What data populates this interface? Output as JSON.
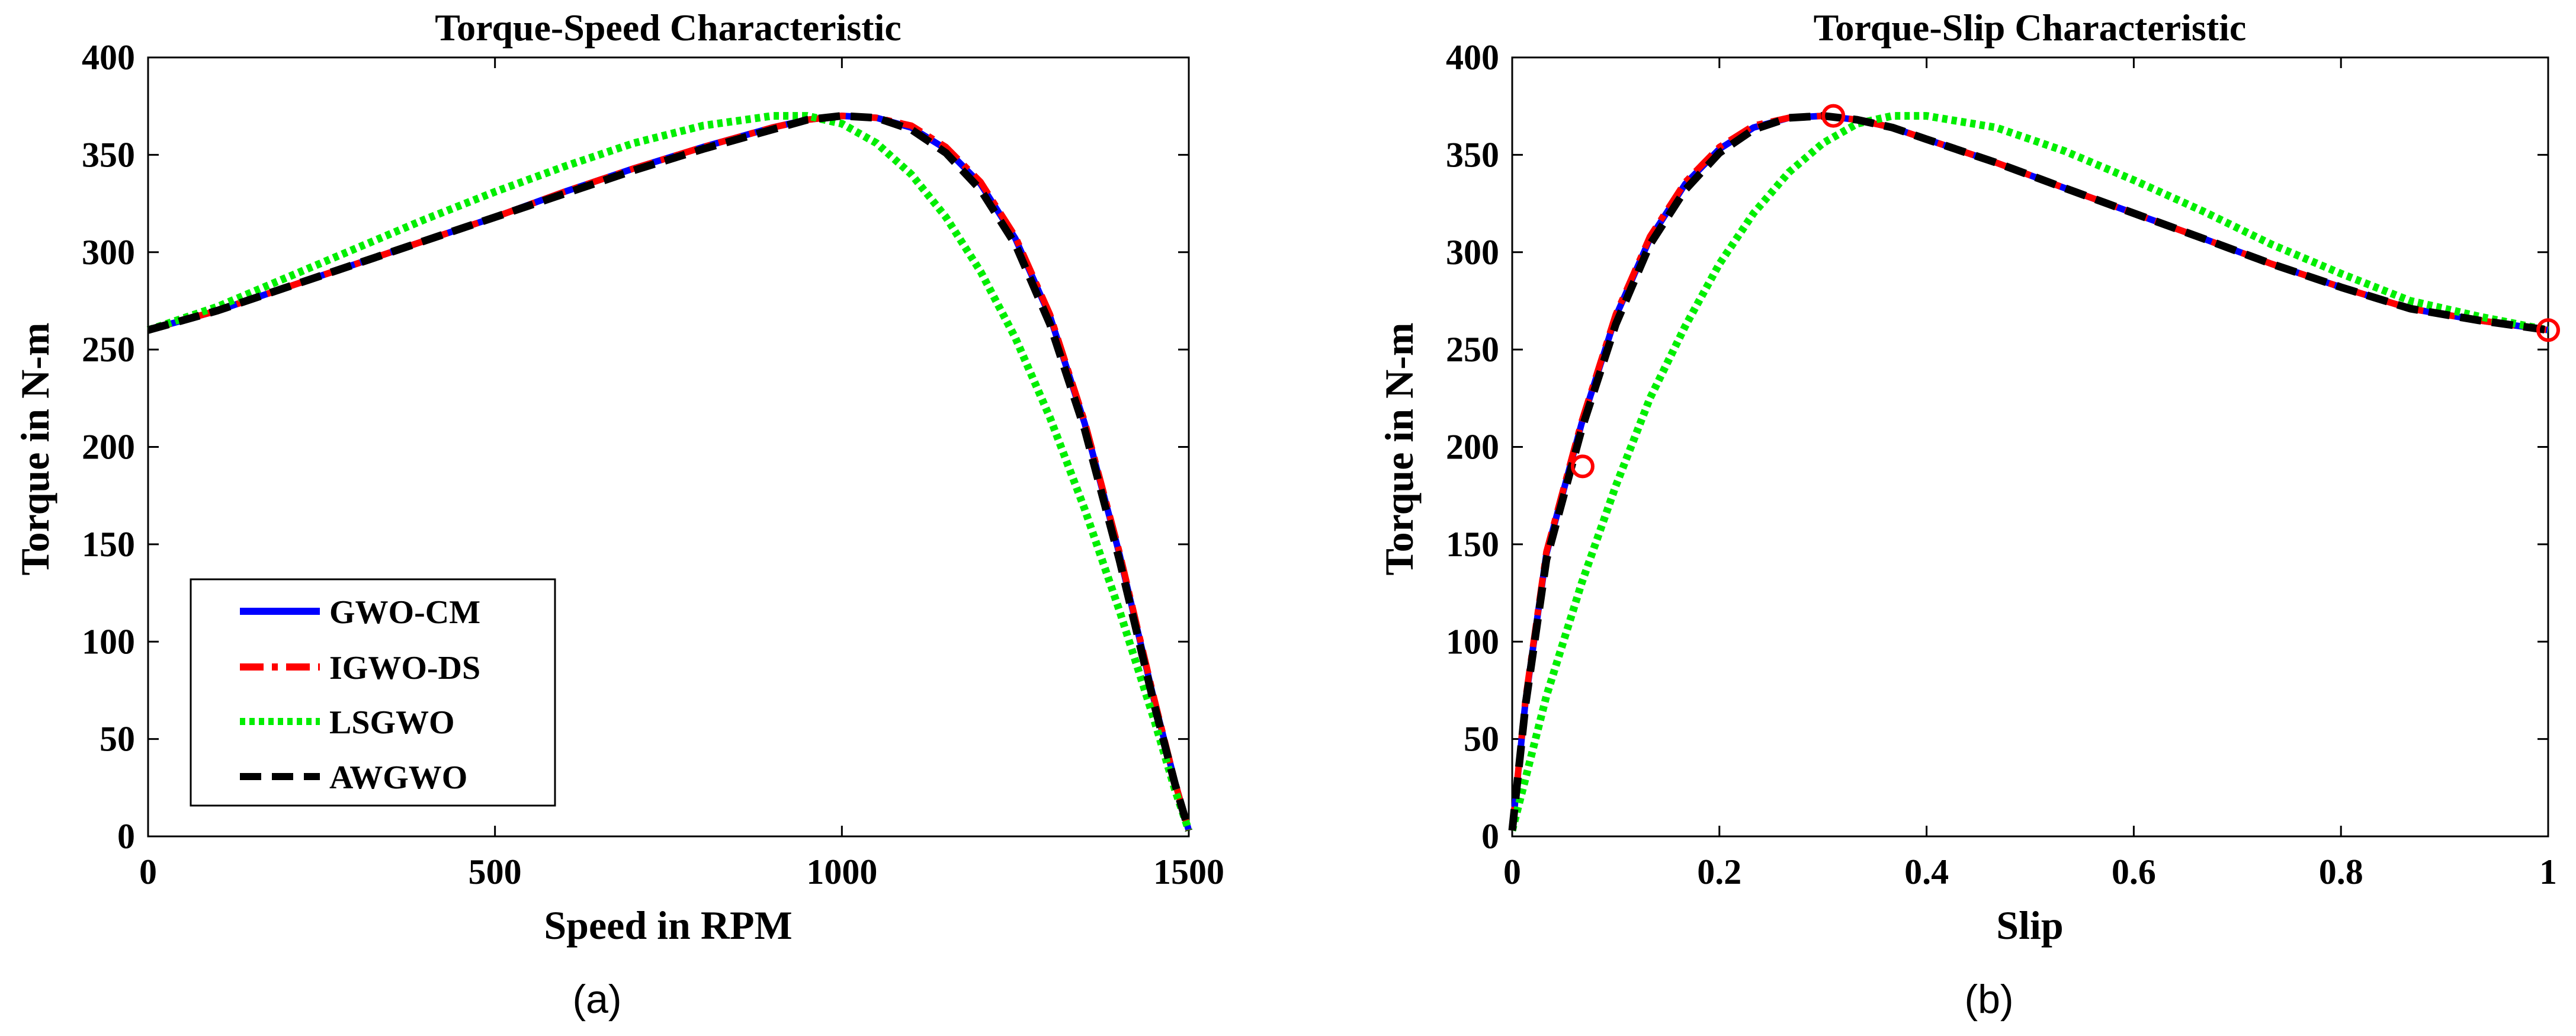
{
  "chart_data": [
    {
      "type": "line",
      "panel_caption": "(a)",
      "title": "Torque-Speed Characteristic",
      "xlabel": "Speed in RPM",
      "ylabel": "Torque in N-m",
      "xlim": [
        0,
        1500
      ],
      "ylim": [
        0,
        400
      ],
      "xticks": [
        0,
        500,
        1000,
        1500
      ],
      "xtick_labels": [
        "0",
        "500",
        "1000",
        "1500"
      ],
      "yticks": [
        0,
        50,
        100,
        150,
        200,
        250,
        300,
        350,
        400
      ],
      "ytick_labels": [
        "0",
        "50",
        "100",
        "150",
        "200",
        "250",
        "300",
        "350",
        "400"
      ],
      "legend": {
        "placement": "lower-left",
        "entries": [
          "GWO-CM",
          "IGWO-DS",
          "LSGWO",
          "AWGWO"
        ]
      },
      "series": [
        {
          "name": "GWO-CM",
          "color": "#0000ff",
          "style": "solid",
          "x": [
            0,
            100,
            200,
            300,
            400,
            500,
            600,
            700,
            800,
            900,
            950,
            1000,
            1050,
            1100,
            1150,
            1200,
            1250,
            1300,
            1350,
            1400,
            1450,
            1480,
            1500
          ],
          "y": [
            260,
            270,
            282,
            294,
            306,
            318,
            331,
            343,
            354,
            364,
            368,
            370,
            369,
            364,
            353,
            335,
            307,
            267,
            212,
            145,
            70,
            28,
            3
          ]
        },
        {
          "name": "IGWO-DS",
          "color": "#ff0000",
          "style": "dashdot",
          "x": [
            0,
            100,
            200,
            300,
            400,
            500,
            600,
            700,
            800,
            900,
            950,
            1000,
            1050,
            1100,
            1150,
            1200,
            1250,
            1300,
            1350,
            1400,
            1450,
            1480,
            1500
          ],
          "y": [
            260,
            270,
            282,
            294,
            306,
            318,
            331,
            343,
            354,
            364,
            368,
            370,
            369,
            365,
            354,
            336,
            308,
            268,
            213,
            146,
            71,
            28,
            3
          ]
        },
        {
          "name": "LSGWO",
          "color": "#00ee00",
          "style": "dotted",
          "x": [
            0,
            100,
            200,
            300,
            400,
            500,
            600,
            700,
            800,
            900,
            950,
            1000,
            1050,
            1100,
            1150,
            1200,
            1250,
            1300,
            1350,
            1400,
            1450,
            1480,
            1500
          ],
          "y": [
            260,
            272,
            287,
            302,
            317,
            331,
            344,
            356,
            365,
            370,
            370,
            366,
            356,
            340,
            318,
            290,
            256,
            215,
            168,
            116,
            60,
            24,
            3
          ]
        },
        {
          "name": "AWGWO",
          "color": "#000000",
          "style": "dashed",
          "x": [
            0,
            100,
            200,
            300,
            400,
            500,
            600,
            700,
            800,
            900,
            950,
            1000,
            1050,
            1100,
            1150,
            1200,
            1250,
            1300,
            1350,
            1400,
            1450,
            1480,
            1500
          ],
          "y": [
            260,
            270,
            282,
            294,
            306,
            318,
            330,
            342,
            353,
            363,
            368,
            370,
            369,
            363,
            351,
            332,
            304,
            263,
            209,
            142,
            68,
            27,
            3
          ]
        }
      ]
    },
    {
      "type": "line",
      "panel_caption": "(b)",
      "title": "Torque-Slip Characteristic",
      "xlabel": "Slip",
      "ylabel": "Torque in N-m",
      "xlim": [
        0,
        1
      ],
      "ylim": [
        0,
        400
      ],
      "xticks": [
        0,
        0.2,
        0.4,
        0.6,
        0.8,
        1
      ],
      "xtick_labels": [
        "0",
        "0.2",
        "0.4",
        "0.6",
        "0.8",
        "1"
      ],
      "yticks": [
        0,
        50,
        100,
        150,
        200,
        250,
        300,
        350,
        400
      ],
      "ytick_labels": [
        "0",
        "50",
        "100",
        "150",
        "200",
        "250",
        "300",
        "350",
        "400"
      ],
      "series": [
        {
          "name": "GWO-CM",
          "color": "#0000ff",
          "style": "solid",
          "x": [
            0,
            0.013,
            0.033,
            0.067,
            0.1,
            0.133,
            0.167,
            0.2,
            0.233,
            0.267,
            0.3,
            0.333,
            0.367,
            0.4,
            0.467,
            0.533,
            0.6,
            0.667,
            0.733,
            0.8,
            0.867,
            0.933,
            1
          ],
          "y": [
            3,
            70,
            145,
            212,
            267,
            307,
            335,
            353,
            364,
            369,
            370,
            368,
            364,
            358,
            346,
            333,
            320,
            307,
            294,
            282,
            271,
            265,
            260
          ]
        },
        {
          "name": "IGWO-DS",
          "color": "#ff0000",
          "style": "dashdot",
          "x": [
            0,
            0.013,
            0.033,
            0.067,
            0.1,
            0.133,
            0.167,
            0.2,
            0.233,
            0.267,
            0.3,
            0.333,
            0.367,
            0.4,
            0.467,
            0.533,
            0.6,
            0.667,
            0.733,
            0.8,
            0.867,
            0.933,
            1
          ],
          "y": [
            3,
            71,
            146,
            213,
            268,
            308,
            336,
            354,
            365,
            369,
            370,
            368,
            364,
            358,
            346,
            333,
            320,
            307,
            294,
            282,
            271,
            265,
            260
          ]
        },
        {
          "name": "LSGWO",
          "color": "#00ee00",
          "style": "dotted",
          "x": [
            0,
            0.013,
            0.033,
            0.067,
            0.1,
            0.133,
            0.167,
            0.2,
            0.233,
            0.267,
            0.3,
            0.333,
            0.367,
            0.4,
            0.467,
            0.533,
            0.6,
            0.667,
            0.733,
            0.8,
            0.867,
            0.933,
            1
          ],
          "y": [
            3,
            30,
            72,
            130,
            180,
            225,
            262,
            294,
            320,
            341,
            356,
            366,
            370,
            370,
            364,
            352,
            337,
            321,
            304,
            289,
            275,
            267,
            260
          ]
        },
        {
          "name": "AWGWO",
          "color": "#000000",
          "style": "dashed",
          "x": [
            0,
            0.013,
            0.033,
            0.067,
            0.1,
            0.133,
            0.167,
            0.2,
            0.233,
            0.267,
            0.3,
            0.333,
            0.367,
            0.4,
            0.467,
            0.533,
            0.6,
            0.667,
            0.733,
            0.8,
            0.867,
            0.933,
            1
          ],
          "y": [
            3,
            68,
            142,
            209,
            263,
            304,
            332,
            351,
            363,
            369,
            370,
            368,
            364,
            358,
            346,
            333,
            320,
            307,
            294,
            282,
            271,
            265,
            260
          ]
        }
      ],
      "markers": {
        "color": "#ff0000",
        "shape": "circle",
        "points": [
          {
            "x": 0.068,
            "y": 190
          },
          {
            "x": 0.31,
            "y": 370
          },
          {
            "x": 1,
            "y": 260
          }
        ]
      }
    }
  ]
}
